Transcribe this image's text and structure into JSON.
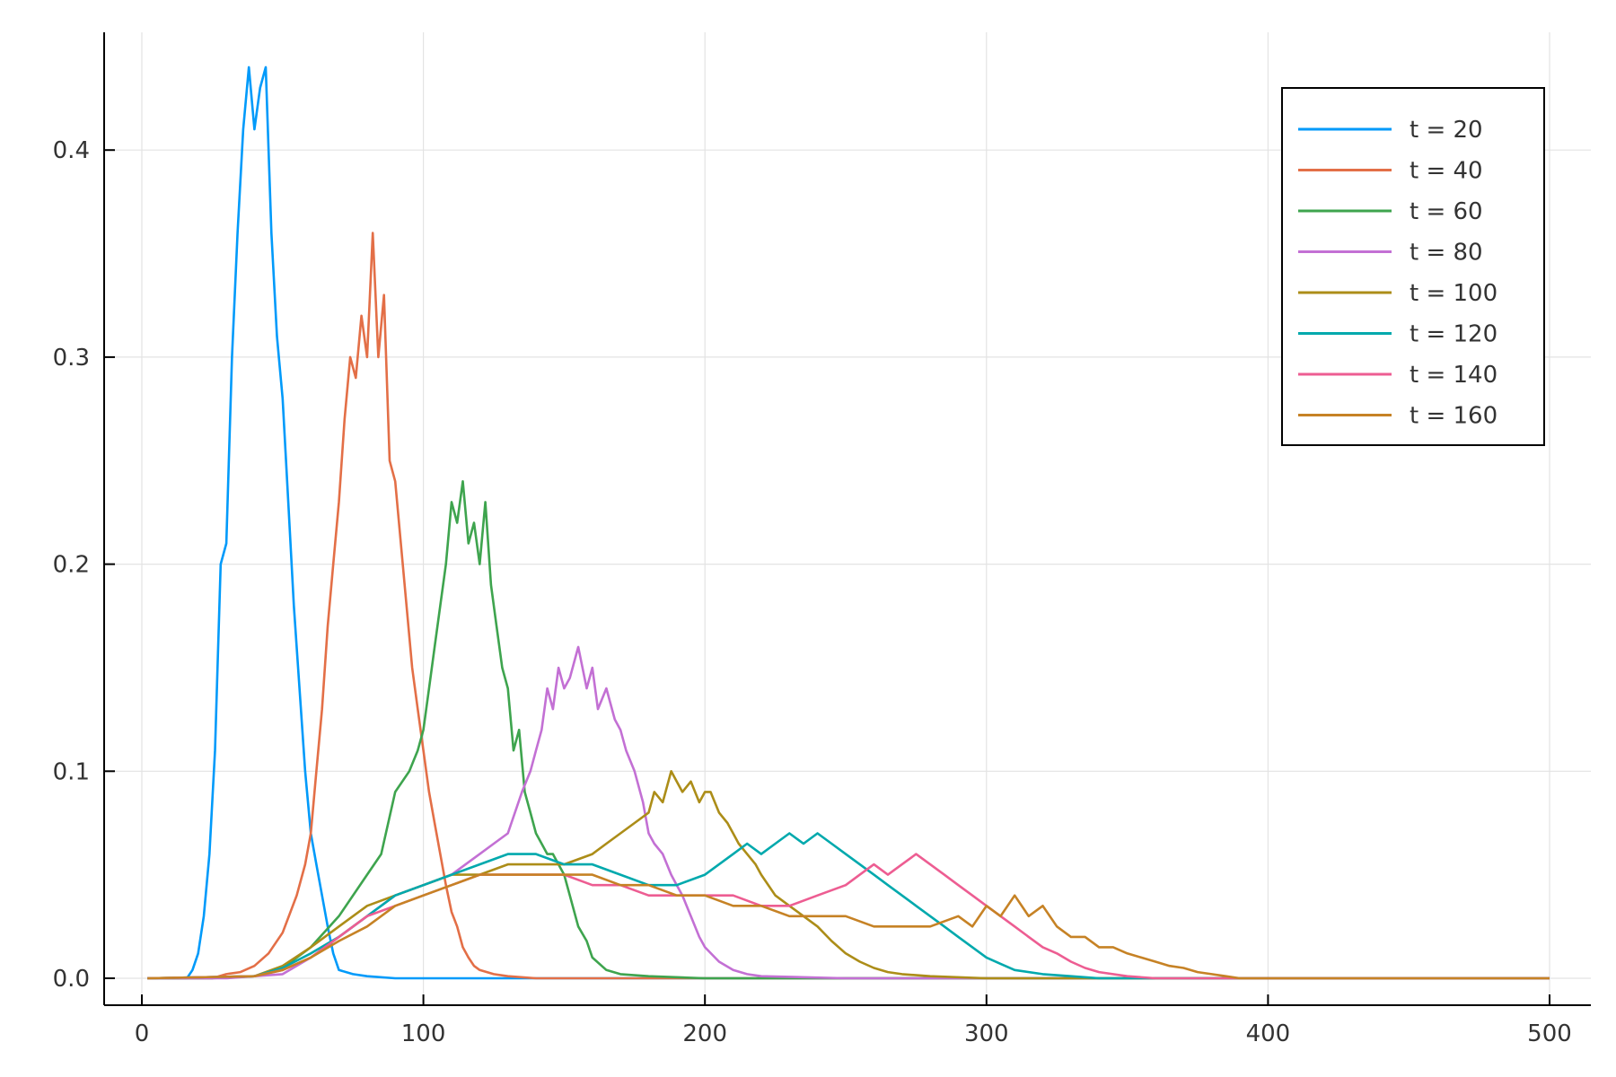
{
  "chart_data": {
    "type": "line",
    "title": "",
    "xlabel": "",
    "ylabel": "",
    "xlim": [
      0,
      500
    ],
    "ylim": [
      0,
      0.45
    ],
    "xticks": [
      0,
      100,
      200,
      300,
      400,
      500
    ],
    "xtick_labels": [
      "0",
      "100",
      "200",
      "300",
      "400",
      "500"
    ],
    "yticks": [
      0.0,
      0.1,
      0.2,
      0.3,
      0.4
    ],
    "ytick_labels": [
      "0.0",
      "0.1",
      "0.2",
      "0.3",
      "0.4"
    ],
    "grid": true,
    "legend_position": "top-right",
    "series": [
      {
        "name": "t = 20",
        "color": "#009AFA",
        "x": [
          2,
          10,
          16,
          18,
          20,
          22,
          24,
          26,
          28,
          30,
          32,
          34,
          36,
          38,
          40,
          42,
          44,
          46,
          48,
          50,
          52,
          54,
          56,
          58,
          60,
          62,
          64,
          66,
          68,
          70,
          75,
          80,
          90,
          100,
          150,
          200,
          300,
          400,
          500
        ],
        "y": [
          0,
          0,
          0,
          0.004,
          0.012,
          0.03,
          0.06,
          0.11,
          0.2,
          0.21,
          0.3,
          0.36,
          0.41,
          0.44,
          0.41,
          0.43,
          0.44,
          0.36,
          0.31,
          0.28,
          0.23,
          0.18,
          0.14,
          0.1,
          0.07,
          0.055,
          0.04,
          0.025,
          0.012,
          0.004,
          0.002,
          0.001,
          0,
          0,
          0,
          0,
          0,
          0,
          0
        ]
      },
      {
        "name": "t = 40",
        "color": "#E36F47",
        "x": [
          2,
          25,
          30,
          35,
          40,
          45,
          50,
          55,
          58,
          60,
          62,
          64,
          66,
          68,
          70,
          72,
          74,
          76,
          78,
          80,
          82,
          84,
          86,
          88,
          90,
          92,
          94,
          96,
          98,
          100,
          102,
          104,
          106,
          108,
          110,
          112,
          114,
          116,
          118,
          120,
          125,
          130,
          140,
          150,
          200,
          300,
          400,
          500
        ],
        "y": [
          0,
          0,
          0.002,
          0.003,
          0.006,
          0.012,
          0.022,
          0.04,
          0.055,
          0.07,
          0.1,
          0.13,
          0.17,
          0.2,
          0.23,
          0.27,
          0.3,
          0.29,
          0.32,
          0.3,
          0.36,
          0.3,
          0.33,
          0.25,
          0.24,
          0.21,
          0.18,
          0.15,
          0.13,
          0.11,
          0.09,
          0.075,
          0.06,
          0.045,
          0.032,
          0.025,
          0.015,
          0.01,
          0.006,
          0.004,
          0.002,
          0.001,
          0,
          0,
          0,
          0,
          0,
          0
        ]
      },
      {
        "name": "t = 60",
        "color": "#3EA44E",
        "x": [
          2,
          25,
          40,
          50,
          60,
          70,
          80,
          85,
          90,
          95,
          98,
          100,
          102,
          104,
          106,
          108,
          110,
          112,
          114,
          116,
          118,
          120,
          122,
          124,
          126,
          128,
          130,
          132,
          134,
          136,
          138,
          140,
          142,
          144,
          146,
          148,
          150,
          152,
          155,
          158,
          160,
          165,
          170,
          180,
          200,
          300,
          400,
          500
        ],
        "y": [
          0,
          0,
          0.001,
          0.005,
          0.015,
          0.03,
          0.05,
          0.06,
          0.09,
          0.1,
          0.11,
          0.12,
          0.14,
          0.16,
          0.18,
          0.2,
          0.23,
          0.22,
          0.24,
          0.21,
          0.22,
          0.2,
          0.23,
          0.19,
          0.17,
          0.15,
          0.14,
          0.11,
          0.12,
          0.09,
          0.08,
          0.07,
          0.065,
          0.06,
          0.06,
          0.055,
          0.05,
          0.04,
          0.025,
          0.018,
          0.01,
          0.004,
          0.002,
          0.001,
          0,
          0,
          0,
          0
        ]
      },
      {
        "name": "t = 80",
        "color": "#C370D4",
        "x": [
          2,
          30,
          50,
          60,
          70,
          80,
          90,
          100,
          110,
          115,
          120,
          125,
          130,
          135,
          138,
          140,
          142,
          144,
          146,
          148,
          150,
          152,
          155,
          158,
          160,
          162,
          165,
          168,
          170,
          172,
          175,
          178,
          180,
          182,
          185,
          188,
          190,
          192,
          195,
          198,
          200,
          205,
          210,
          215,
          220,
          250,
          300,
          400,
          500
        ],
        "y": [
          0,
          0,
          0.002,
          0.01,
          0.02,
          0.03,
          0.04,
          0.045,
          0.05,
          0.055,
          0.06,
          0.065,
          0.07,
          0.09,
          0.1,
          0.11,
          0.12,
          0.14,
          0.13,
          0.15,
          0.14,
          0.145,
          0.16,
          0.14,
          0.15,
          0.13,
          0.14,
          0.125,
          0.12,
          0.11,
          0.1,
          0.085,
          0.07,
          0.065,
          0.06,
          0.05,
          0.045,
          0.04,
          0.03,
          0.02,
          0.015,
          0.008,
          0.004,
          0.002,
          0.001,
          0,
          0,
          0,
          0
        ]
      },
      {
        "name": "t = 100",
        "color": "#AC8D18",
        "x": [
          2,
          40,
          50,
          60,
          70,
          80,
          90,
          100,
          110,
          120,
          130,
          140,
          150,
          160,
          165,
          170,
          175,
          180,
          182,
          185,
          188,
          190,
          192,
          195,
          198,
          200,
          202,
          205,
          208,
          210,
          212,
          215,
          218,
          220,
          225,
          230,
          235,
          240,
          245,
          250,
          255,
          260,
          265,
          270,
          280,
          300,
          400,
          500
        ],
        "y": [
          0,
          0.001,
          0.006,
          0.015,
          0.025,
          0.035,
          0.04,
          0.045,
          0.05,
          0.05,
          0.055,
          0.055,
          0.055,
          0.06,
          0.065,
          0.07,
          0.075,
          0.08,
          0.09,
          0.085,
          0.1,
          0.095,
          0.09,
          0.095,
          0.085,
          0.09,
          0.09,
          0.08,
          0.075,
          0.07,
          0.065,
          0.06,
          0.055,
          0.05,
          0.04,
          0.035,
          0.03,
          0.025,
          0.018,
          0.012,
          0.008,
          0.005,
          0.003,
          0.002,
          0.001,
          0,
          0,
          0
        ]
      },
      {
        "name": "t = 120",
        "color": "#00A9AD",
        "x": [
          2,
          40,
          50,
          60,
          70,
          80,
          90,
          100,
          110,
          120,
          130,
          140,
          150,
          160,
          170,
          180,
          190,
          200,
          205,
          210,
          215,
          220,
          225,
          230,
          235,
          240,
          245,
          250,
          255,
          260,
          265,
          270,
          275,
          280,
          285,
          290,
          295,
          300,
          305,
          310,
          320,
          330,
          340,
          400,
          500
        ],
        "y": [
          0,
          0.001,
          0.005,
          0.012,
          0.02,
          0.03,
          0.04,
          0.045,
          0.05,
          0.055,
          0.06,
          0.06,
          0.055,
          0.055,
          0.05,
          0.045,
          0.045,
          0.05,
          0.055,
          0.06,
          0.065,
          0.06,
          0.065,
          0.07,
          0.065,
          0.07,
          0.065,
          0.06,
          0.055,
          0.05,
          0.045,
          0.04,
          0.035,
          0.03,
          0.025,
          0.02,
          0.015,
          0.01,
          0.007,
          0.004,
          0.002,
          0.001,
          0,
          0,
          0
        ]
      },
      {
        "name": "t = 140",
        "color": "#ED5D92",
        "x": [
          2,
          40,
          50,
          60,
          70,
          80,
          90,
          100,
          110,
          120,
          130,
          140,
          150,
          160,
          170,
          180,
          190,
          200,
          210,
          220,
          230,
          240,
          250,
          255,
          260,
          265,
          270,
          275,
          280,
          285,
          290,
          295,
          300,
          305,
          310,
          315,
          320,
          325,
          330,
          335,
          340,
          350,
          360,
          400,
          500
        ],
        "y": [
          0,
          0.001,
          0.004,
          0.01,
          0.02,
          0.03,
          0.035,
          0.04,
          0.045,
          0.05,
          0.05,
          0.05,
          0.05,
          0.045,
          0.045,
          0.04,
          0.04,
          0.04,
          0.04,
          0.035,
          0.035,
          0.04,
          0.045,
          0.05,
          0.055,
          0.05,
          0.055,
          0.06,
          0.055,
          0.05,
          0.045,
          0.04,
          0.035,
          0.03,
          0.025,
          0.02,
          0.015,
          0.012,
          0.008,
          0.005,
          0.003,
          0.001,
          0,
          0,
          0
        ]
      },
      {
        "name": "t = 160",
        "color": "#C68225",
        "x": [
          2,
          40,
          50,
          60,
          70,
          80,
          90,
          100,
          110,
          120,
          130,
          140,
          150,
          160,
          170,
          180,
          190,
          200,
          210,
          220,
          230,
          240,
          250,
          260,
          270,
          280,
          290,
          295,
          300,
          305,
          310,
          315,
          320,
          325,
          330,
          335,
          340,
          345,
          350,
          355,
          360,
          365,
          370,
          375,
          380,
          385,
          390,
          400,
          500
        ],
        "y": [
          0,
          0.001,
          0.004,
          0.01,
          0.018,
          0.025,
          0.035,
          0.04,
          0.045,
          0.05,
          0.05,
          0.05,
          0.05,
          0.05,
          0.045,
          0.045,
          0.04,
          0.04,
          0.035,
          0.035,
          0.03,
          0.03,
          0.03,
          0.025,
          0.025,
          0.025,
          0.03,
          0.025,
          0.035,
          0.03,
          0.04,
          0.03,
          0.035,
          0.025,
          0.02,
          0.02,
          0.015,
          0.015,
          0.012,
          0.01,
          0.008,
          0.006,
          0.005,
          0.003,
          0.002,
          0.001,
          0,
          0,
          0
        ]
      }
    ]
  }
}
